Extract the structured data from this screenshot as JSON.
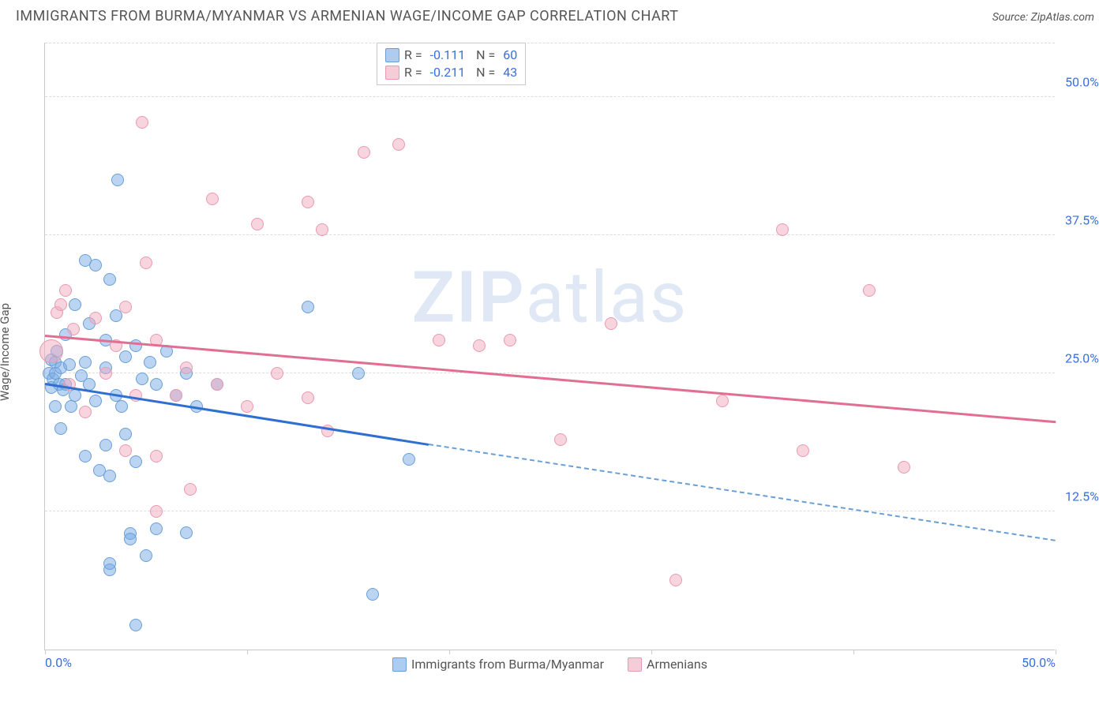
{
  "title": "IMMIGRANTS FROM BURMA/MYANMAR VS ARMENIAN WAGE/INCOME GAP CORRELATION CHART",
  "source_label": "Source: ",
  "source_value": "ZipAtlas.com",
  "y_axis_label": "Wage/Income Gap",
  "watermark": "ZIPatlas",
  "chart": {
    "type": "scatter",
    "background_color": "#ffffff",
    "grid_color": "#dddddd",
    "axis_color": "#c9c9c9",
    "tick_label_color": "#3a6fd8",
    "xlim": [
      0,
      50
    ],
    "ylim": [
      0,
      55
    ],
    "y_ticks": [
      12.5,
      25.0,
      37.5,
      50.0
    ],
    "y_tick_labels": [
      "12.5%",
      "25.0%",
      "37.5%",
      "50.0%"
    ],
    "x_ticks": [
      0,
      10,
      20,
      30,
      40,
      50
    ],
    "x_tick_labels": {
      "0": "0.0%",
      "50": "50.0%"
    },
    "marker_radius": 8,
    "marker_radius_big": 15,
    "series": [
      {
        "id": "blue",
        "label": "Immigrants from Burma/Myanmar",
        "fill": "rgba(120,170,230,0.5)",
        "stroke": "#6a9fd6",
        "R": "-0.111",
        "N": "60",
        "points": [
          [
            0.2,
            25.0
          ],
          [
            0.3,
            26.2
          ],
          [
            0.3,
            23.7
          ],
          [
            0.4,
            24.5
          ],
          [
            0.5,
            25.0
          ],
          [
            0.5,
            26.0
          ],
          [
            0.5,
            22.0
          ],
          [
            0.6,
            27.0
          ],
          [
            0.7,
            24.0
          ],
          [
            0.8,
            25.5
          ],
          [
            0.8,
            20.0
          ],
          [
            0.9,
            23.5
          ],
          [
            1.0,
            28.5
          ],
          [
            1.0,
            24.0
          ],
          [
            1.2,
            25.8
          ],
          [
            1.3,
            22.0
          ],
          [
            1.5,
            23.0
          ],
          [
            1.5,
            31.2
          ],
          [
            1.8,
            24.8
          ],
          [
            2.0,
            35.2
          ],
          [
            2.0,
            26.0
          ],
          [
            2.0,
            17.5
          ],
          [
            2.2,
            24.0
          ],
          [
            2.2,
            29.5
          ],
          [
            2.5,
            34.8
          ],
          [
            2.5,
            22.5
          ],
          [
            2.7,
            16.2
          ],
          [
            3.0,
            28.0
          ],
          [
            3.0,
            25.5
          ],
          [
            3.0,
            18.5
          ],
          [
            3.2,
            33.5
          ],
          [
            3.2,
            15.7
          ],
          [
            3.2,
            7.2
          ],
          [
            3.2,
            7.8
          ],
          [
            3.5,
            23.0
          ],
          [
            3.5,
            30.2
          ],
          [
            3.6,
            42.5
          ],
          [
            3.8,
            22.0
          ],
          [
            4.0,
            26.5
          ],
          [
            4.0,
            19.5
          ],
          [
            4.2,
            10.5
          ],
          [
            4.2,
            10.0
          ],
          [
            4.5,
            27.5
          ],
          [
            4.5,
            17.0
          ],
          [
            4.5,
            2.2
          ],
          [
            4.8,
            24.5
          ],
          [
            5.0,
            8.5
          ],
          [
            5.2,
            26.0
          ],
          [
            5.5,
            24.0
          ],
          [
            5.5,
            10.9
          ],
          [
            6.0,
            27.0
          ],
          [
            6.5,
            23.0
          ],
          [
            7.0,
            25.0
          ],
          [
            7.0,
            10.6
          ],
          [
            7.5,
            22.0
          ],
          [
            8.5,
            24.0
          ],
          [
            13.0,
            31.0
          ],
          [
            15.5,
            25.0
          ],
          [
            16.2,
            5.0
          ],
          [
            18.0,
            17.2
          ]
        ],
        "trend": {
          "x0": 0,
          "y0": 24.2,
          "x1": 19,
          "y1": 18.7,
          "x_extend": 50,
          "y_extend": 10.0,
          "color": "#2f6fd0"
        }
      },
      {
        "id": "pink",
        "label": "Armenians",
        "fill": "rgba(240,170,190,0.5)",
        "stroke": "#e99ab0",
        "R": "-0.211",
        "N": "43",
        "points": [
          [
            0.3,
            27.0,
            "big"
          ],
          [
            0.6,
            30.5
          ],
          [
            0.8,
            31.2
          ],
          [
            1.0,
            32.5
          ],
          [
            1.2,
            24.0
          ],
          [
            1.4,
            29.0
          ],
          [
            2.0,
            21.5
          ],
          [
            2.5,
            30.0
          ],
          [
            3.0,
            25.0
          ],
          [
            3.5,
            27.5
          ],
          [
            4.0,
            31.0
          ],
          [
            4.0,
            18.0
          ],
          [
            4.5,
            23.0
          ],
          [
            4.8,
            47.7
          ],
          [
            5.0,
            35.0
          ],
          [
            5.5,
            17.5
          ],
          [
            5.5,
            28.0
          ],
          [
            5.5,
            12.5
          ],
          [
            6.5,
            23.0
          ],
          [
            7.0,
            25.5
          ],
          [
            7.2,
            14.5
          ],
          [
            8.3,
            40.8
          ],
          [
            8.5,
            24.0
          ],
          [
            10.0,
            22.0
          ],
          [
            10.5,
            38.5
          ],
          [
            11.5,
            25.0
          ],
          [
            13.0,
            40.5
          ],
          [
            13.0,
            22.8
          ],
          [
            13.7,
            38.0
          ],
          [
            14.0,
            19.8
          ],
          [
            15.8,
            45.0
          ],
          [
            17.5,
            45.7
          ],
          [
            19.5,
            28.0
          ],
          [
            21.5,
            27.5
          ],
          [
            23.0,
            28.0
          ],
          [
            25.5,
            19.0
          ],
          [
            28.0,
            29.5
          ],
          [
            31.2,
            6.3
          ],
          [
            33.5,
            22.5
          ],
          [
            36.5,
            38.0
          ],
          [
            37.5,
            18.0
          ],
          [
            40.8,
            32.5
          ],
          [
            42.5,
            16.5
          ]
        ],
        "trend": {
          "x0": 0,
          "y0": 28.6,
          "x1": 50,
          "y1": 20.8,
          "x_extend": 50,
          "y_extend": 20.8,
          "color": "#e16f93"
        }
      }
    ],
    "legend_top_rows": [
      {
        "swatch": "blue",
        "r_label": "R =",
        "r_value": "-0.111",
        "n_label": "N =",
        "n_value": "60"
      },
      {
        "swatch": "pink",
        "r_label": "R =",
        "r_value": "-0.211",
        "n_label": "N =",
        "n_value": "43"
      }
    ]
  }
}
